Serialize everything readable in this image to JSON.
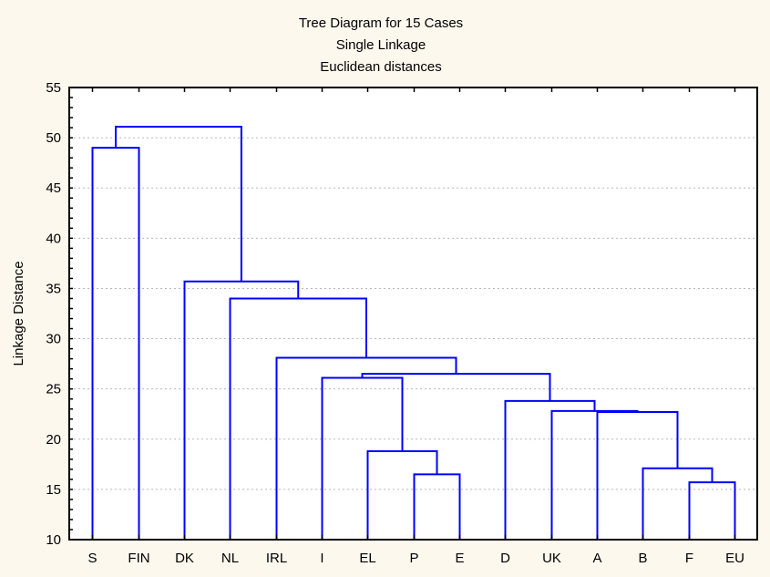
{
  "chart_data": {
    "type": "dendrogram",
    "title": "Tree Diagram for 15 Cases",
    "subtitle": [
      "Single Linkage",
      "Euclidean distances"
    ],
    "xlabel": "",
    "ylabel": "Linkage Distance",
    "ylim": [
      10,
      55
    ],
    "yticks": [
      10,
      15,
      20,
      25,
      30,
      35,
      40,
      45,
      50,
      55
    ],
    "grid": true,
    "line_color": "#0000ff",
    "leaves": [
      "S",
      "FIN",
      "DK",
      "NL",
      "IRL",
      "I",
      "EL",
      "P",
      "E",
      "D",
      "UK",
      "A",
      "B",
      "F",
      "EU"
    ],
    "merges": [
      {
        "id": "c1",
        "left": "S",
        "right": "FIN",
        "height": 49.0
      },
      {
        "id": "c2",
        "left": "F",
        "right": "EU",
        "height": 15.7
      },
      {
        "id": "c3",
        "left": "B",
        "right": "c2",
        "height": 17.1
      },
      {
        "id": "c4",
        "left": "A",
        "right": "c3",
        "height": 22.7
      },
      {
        "id": "c5",
        "left": "UK",
        "right": "c4",
        "height": 22.8
      },
      {
        "id": "c6",
        "left": "D",
        "right": "c5",
        "height": 23.8
      },
      {
        "id": "c7",
        "left": "P",
        "right": "E",
        "height": 16.5
      },
      {
        "id": "c8",
        "left": "EL",
        "right": "c7",
        "height": 18.8
      },
      {
        "id": "c9",
        "left": "I",
        "right": "c8",
        "height": 26.1
      },
      {
        "id": "c10",
        "left": "c9",
        "right": "c6",
        "height": 26.5
      },
      {
        "id": "c11",
        "left": "IRL",
        "right": "c10",
        "height": 28.1
      },
      {
        "id": "c12",
        "left": "NL",
        "right": "c11",
        "height": 34.0
      },
      {
        "id": "c13",
        "left": "DK",
        "right": "c12",
        "height": 35.7
      },
      {
        "id": "c14",
        "left": "c1",
        "right": "c13",
        "height": 51.1
      }
    ]
  }
}
